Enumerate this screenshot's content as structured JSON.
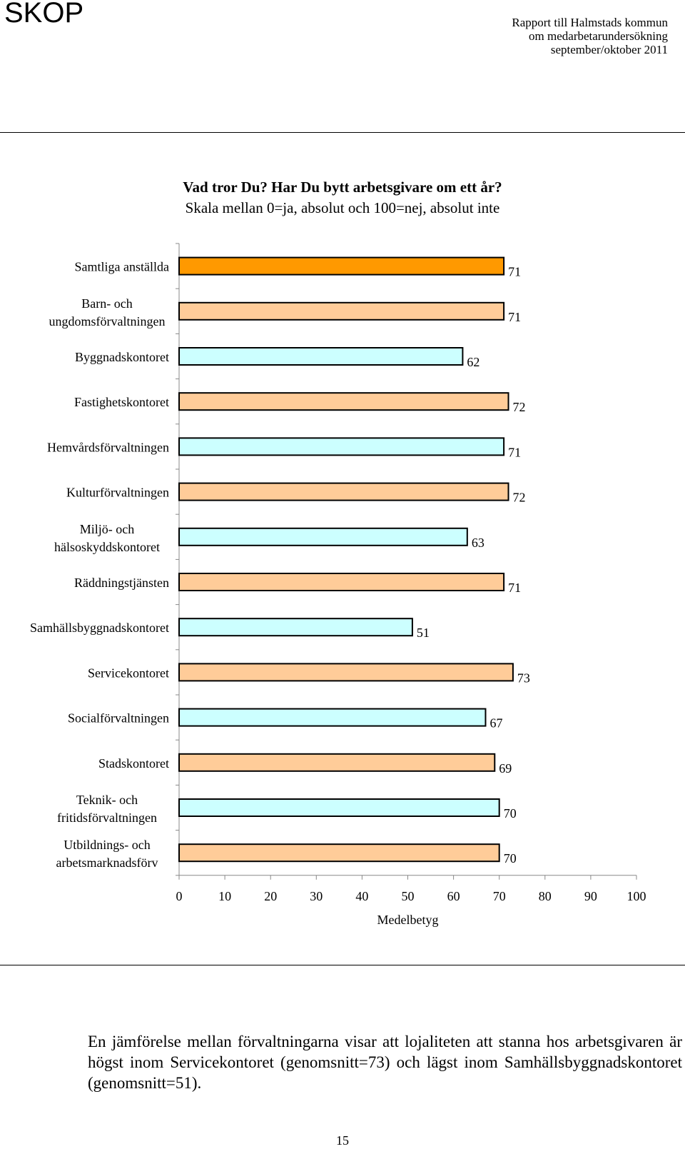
{
  "header": {
    "logo": "SKOP",
    "report_lines": [
      "Rapport till Halmstads kommun",
      "om medarbetarundersökning",
      "september/oktober 2011"
    ]
  },
  "chart_data": {
    "type": "bar",
    "orientation": "horizontal",
    "title": "Vad tror Du? Har Du bytt arbetsgivare om ett år?",
    "subtitle": "Skala mellan 0=ja, absolut och 100=nej, absolut inte",
    "xlabel": "Medelbetyg",
    "xlim": [
      0,
      100
    ],
    "xticks": [
      0,
      10,
      20,
      30,
      40,
      50,
      60,
      70,
      80,
      90,
      100
    ],
    "categories": [
      [
        "Samtliga anställda"
      ],
      [
        "Barn- och",
        "ungdomsförvaltningen"
      ],
      [
        "Byggnadskontoret"
      ],
      [
        "Fastighetskontoret"
      ],
      [
        "Hemvårdsförvaltningen"
      ],
      [
        "Kulturförvaltningen"
      ],
      [
        "Miljö- och",
        "hälsoskyddskontoret"
      ],
      [
        "Räddningstjänsten"
      ],
      [
        "Samhällsbyggnadskontoret"
      ],
      [
        "Servicekontoret"
      ],
      [
        "Socialförvaltningen"
      ],
      [
        "Stadskontoret"
      ],
      [
        "Teknik- och",
        "fritidsförvaltningen"
      ],
      [
        "Utbildnings- och",
        "arbetsmarknadsförv"
      ]
    ],
    "values": [
      71,
      71,
      62,
      72,
      71,
      72,
      63,
      71,
      51,
      73,
      67,
      69,
      70,
      70
    ],
    "bar_colors": [
      "#FF9900",
      "#FFCC99",
      "#CCFFFF",
      "#FFCC99",
      "#CCFFFF",
      "#FFCC99",
      "#CCFFFF",
      "#FFCC99",
      "#CCFFFF",
      "#FFCC99",
      "#CCFFFF",
      "#FFCC99",
      "#CCFFFF",
      "#FFCC99"
    ],
    "data_labels": true,
    "grid": false
  },
  "body_text": "En jämförelse mellan förvaltningarna visar att lojaliteten att stanna hos arbetsgivaren är högst inom Servicekontoret (genomsnitt=73) och lägst inom Samhällsbyggnadskontoret (genomsnitt=51).",
  "page_number": "15"
}
